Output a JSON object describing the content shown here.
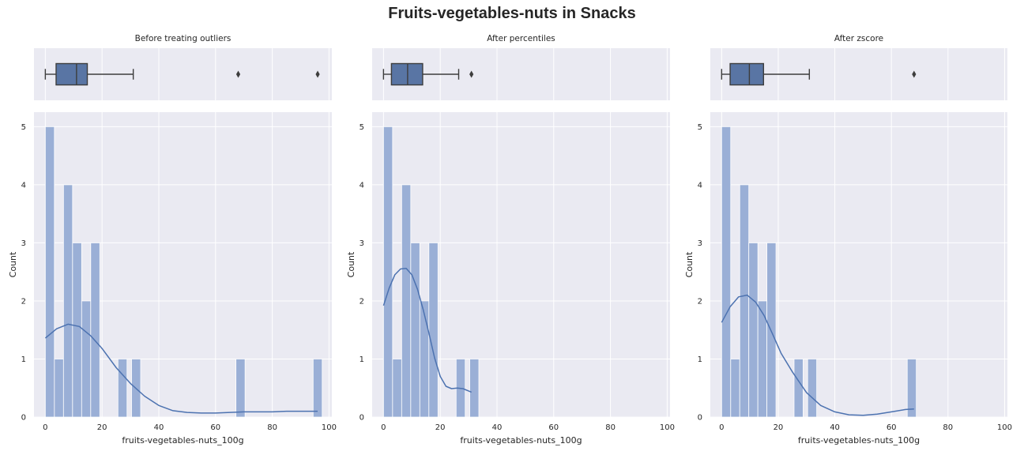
{
  "title": "Fruits-vegetables-nuts in Snacks",
  "colors": {
    "axes_bg": "#eaeaf2",
    "grid": "#ffffff",
    "bar_fill": "#9aafd6",
    "bar_edge": "#ffffff",
    "box_fill": "#5975a4",
    "kde_line": "#4c72b0",
    "whisker": "#3d3d3d"
  },
  "chart_data": [
    {
      "type": "box+histogram",
      "title": "Before treating outliers",
      "xlabel": "fruits-vegetables-nuts_100g",
      "ylabel": "Count",
      "xlim": [
        -4,
        101
      ],
      "ylim": [
        0,
        5.25
      ],
      "xticks": [
        0,
        20,
        40,
        60,
        80,
        100
      ],
      "yticks": [
        0,
        1,
        2,
        3,
        4,
        5
      ],
      "grid": true,
      "box": {
        "whisker_low": 0,
        "q1": 3.8,
        "median": 11,
        "q3": 14.8,
        "whisker_high": 31,
        "outliers": [
          68,
          96
        ]
      },
      "hist": {
        "bin_width": 3.2,
        "bin_starts": [
          0,
          3.2,
          6.4,
          9.6,
          12.8,
          16,
          25.6,
          30.4,
          67.2,
          94.4
        ],
        "counts": [
          5,
          1,
          4,
          3,
          2,
          3,
          1,
          1,
          1,
          1
        ]
      },
      "kde": {
        "x": [
          0,
          4,
          8,
          12,
          16,
          20,
          25,
          30,
          35,
          40,
          45,
          50,
          55,
          60,
          65,
          70,
          75,
          80,
          85,
          90,
          96
        ],
        "y": [
          1.36,
          1.52,
          1.6,
          1.56,
          1.4,
          1.18,
          0.85,
          0.58,
          0.36,
          0.2,
          0.11,
          0.08,
          0.07,
          0.07,
          0.08,
          0.09,
          0.09,
          0.09,
          0.1,
          0.1,
          0.1
        ]
      }
    },
    {
      "type": "box+histogram",
      "title": "After percentiles",
      "xlabel": "fruits-vegetables-nuts_100g",
      "ylabel": "Count",
      "xlim": [
        -4,
        101
      ],
      "ylim": [
        0,
        5.25
      ],
      "xticks": [
        0,
        20,
        40,
        60,
        80,
        100
      ],
      "yticks": [
        0,
        1,
        2,
        3,
        4,
        5
      ],
      "grid": true,
      "box": {
        "whisker_low": 0,
        "q1": 2.8,
        "median": 8.5,
        "q3": 13.8,
        "whisker_high": 26.5,
        "outliers": [
          31
        ]
      },
      "hist": {
        "bin_width": 3.2,
        "bin_starts": [
          0,
          3.2,
          6.4,
          9.6,
          12.8,
          16,
          25.6,
          30.4
        ],
        "counts": [
          5,
          1,
          4,
          3,
          2,
          3,
          1,
          1
        ]
      },
      "kde": {
        "x": [
          0,
          2,
          4,
          6,
          8,
          10,
          12,
          14,
          16,
          18,
          20,
          22,
          24,
          26,
          28,
          31
        ],
        "y": [
          1.92,
          2.22,
          2.45,
          2.55,
          2.56,
          2.45,
          2.2,
          1.85,
          1.45,
          1.02,
          0.7,
          0.53,
          0.49,
          0.5,
          0.49,
          0.43
        ]
      }
    },
    {
      "type": "box+histogram",
      "title": "After zscore",
      "xlabel": "fruits-vegetables-nuts_100g",
      "ylabel": "Count",
      "xlim": [
        -4,
        101
      ],
      "ylim": [
        0,
        5.25
      ],
      "xticks": [
        0,
        20,
        40,
        60,
        80,
        100
      ],
      "yticks": [
        0,
        1,
        2,
        3,
        4,
        5
      ],
      "grid": true,
      "box": {
        "whisker_low": 0,
        "q1": 3,
        "median": 9.8,
        "q3": 14.8,
        "whisker_high": 31,
        "outliers": [
          68
        ]
      },
      "hist": {
        "bin_width": 3.2,
        "bin_starts": [
          0,
          3.2,
          6.4,
          9.6,
          12.8,
          16,
          25.6,
          30.4,
          65.6
        ],
        "counts": [
          5,
          1,
          4,
          3,
          2,
          3,
          1,
          1,
          1
        ]
      },
      "kde": {
        "x": [
          0,
          3,
          6,
          9,
          12,
          15,
          18,
          21,
          25,
          30,
          35,
          40,
          45,
          50,
          55,
          60,
          65,
          68
        ],
        "y": [
          1.63,
          1.9,
          2.07,
          2.1,
          1.98,
          1.75,
          1.43,
          1.1,
          0.78,
          0.42,
          0.2,
          0.09,
          0.04,
          0.03,
          0.05,
          0.09,
          0.13,
          0.14
        ]
      }
    }
  ]
}
